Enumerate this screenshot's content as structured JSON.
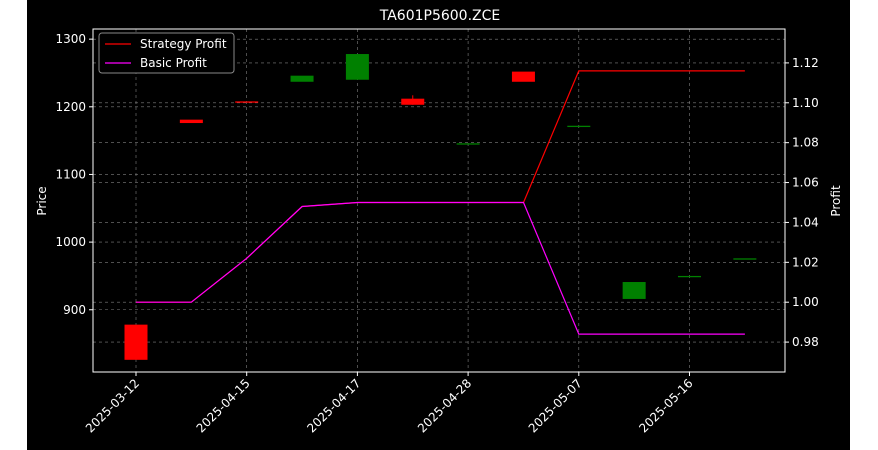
{
  "chart_data": {
    "type": "candlestick",
    "title": "TA601P5600.ZCE",
    "ylabel": "Price",
    "y2label": "Profit",
    "grid": true,
    "legend_placement": "top-left",
    "ylim": [
      808,
      1315
    ],
    "y2lim": [
      0.965,
      1.137
    ],
    "yticks": [
      900,
      1000,
      1100,
      1200,
      1300
    ],
    "y2ticks": [
      0.98,
      1.0,
      1.02,
      1.04,
      1.06,
      1.08,
      1.1,
      1.12
    ],
    "y2tick_labels": [
      "0.98",
      "1.00",
      "1.02",
      "1.04",
      "1.06",
      "1.08",
      "1.10",
      "1.12"
    ],
    "x_tick_labels": [
      "2025-03-12",
      "2025-04-15",
      "2025-04-17",
      "2025-04-28",
      "2025-05-07",
      "2025-05-16"
    ],
    "x_tick_index": [
      0,
      2,
      4,
      6,
      8,
      10
    ],
    "candles": [
      {
        "open": 878,
        "close": 826,
        "high": 878,
        "low": 826
      },
      {
        "open": 1181,
        "close": 1176,
        "high": 1181,
        "low": 1176
      },
      {
        "open": 1208,
        "close": 1207,
        "high": 1208,
        "low": 1207
      },
      {
        "open": 1237,
        "close": 1246,
        "high": 1246,
        "low": 1237
      },
      {
        "open": 1240,
        "close": 1278,
        "high": 1278,
        "low": 1240
      },
      {
        "open": 1212,
        "close": 1203,
        "high": 1217,
        "low": 1203
      },
      {
        "open": 1146,
        "close": 1146,
        "high": 1146,
        "low": 1146
      },
      {
        "open": 1252,
        "close": 1237,
        "high": 1252,
        "low": 1237
      },
      {
        "open": 1172,
        "close": 1172,
        "high": 1172,
        "low": 1172
      },
      {
        "open": 916,
        "close": 941,
        "high": 941,
        "low": 916
      },
      {
        "open": 950,
        "close": 950,
        "high": 950,
        "low": 950
      },
      {
        "open": 976,
        "close": 976,
        "high": 976,
        "low": 976
      }
    ],
    "series": [
      {
        "name": "Strategy Profit",
        "axis": "right",
        "color": "#ff0000",
        "values": [
          1.0,
          1.0,
          1.022,
          1.048,
          1.05,
          1.05,
          1.05,
          1.05,
          1.116,
          1.116,
          1.116,
          1.116
        ]
      },
      {
        "name": "Basic Profit",
        "axis": "right",
        "color": "#ff00ff",
        "values": [
          1.0,
          1.0,
          1.022,
          1.048,
          1.05,
          1.05,
          1.05,
          1.05,
          0.984,
          0.984,
          0.984,
          0.984
        ]
      }
    ],
    "colors": {
      "up": "#008000",
      "down": "#ff0000",
      "background": "#000000",
      "axes": "#ffffff",
      "grid": "#808080"
    }
  }
}
